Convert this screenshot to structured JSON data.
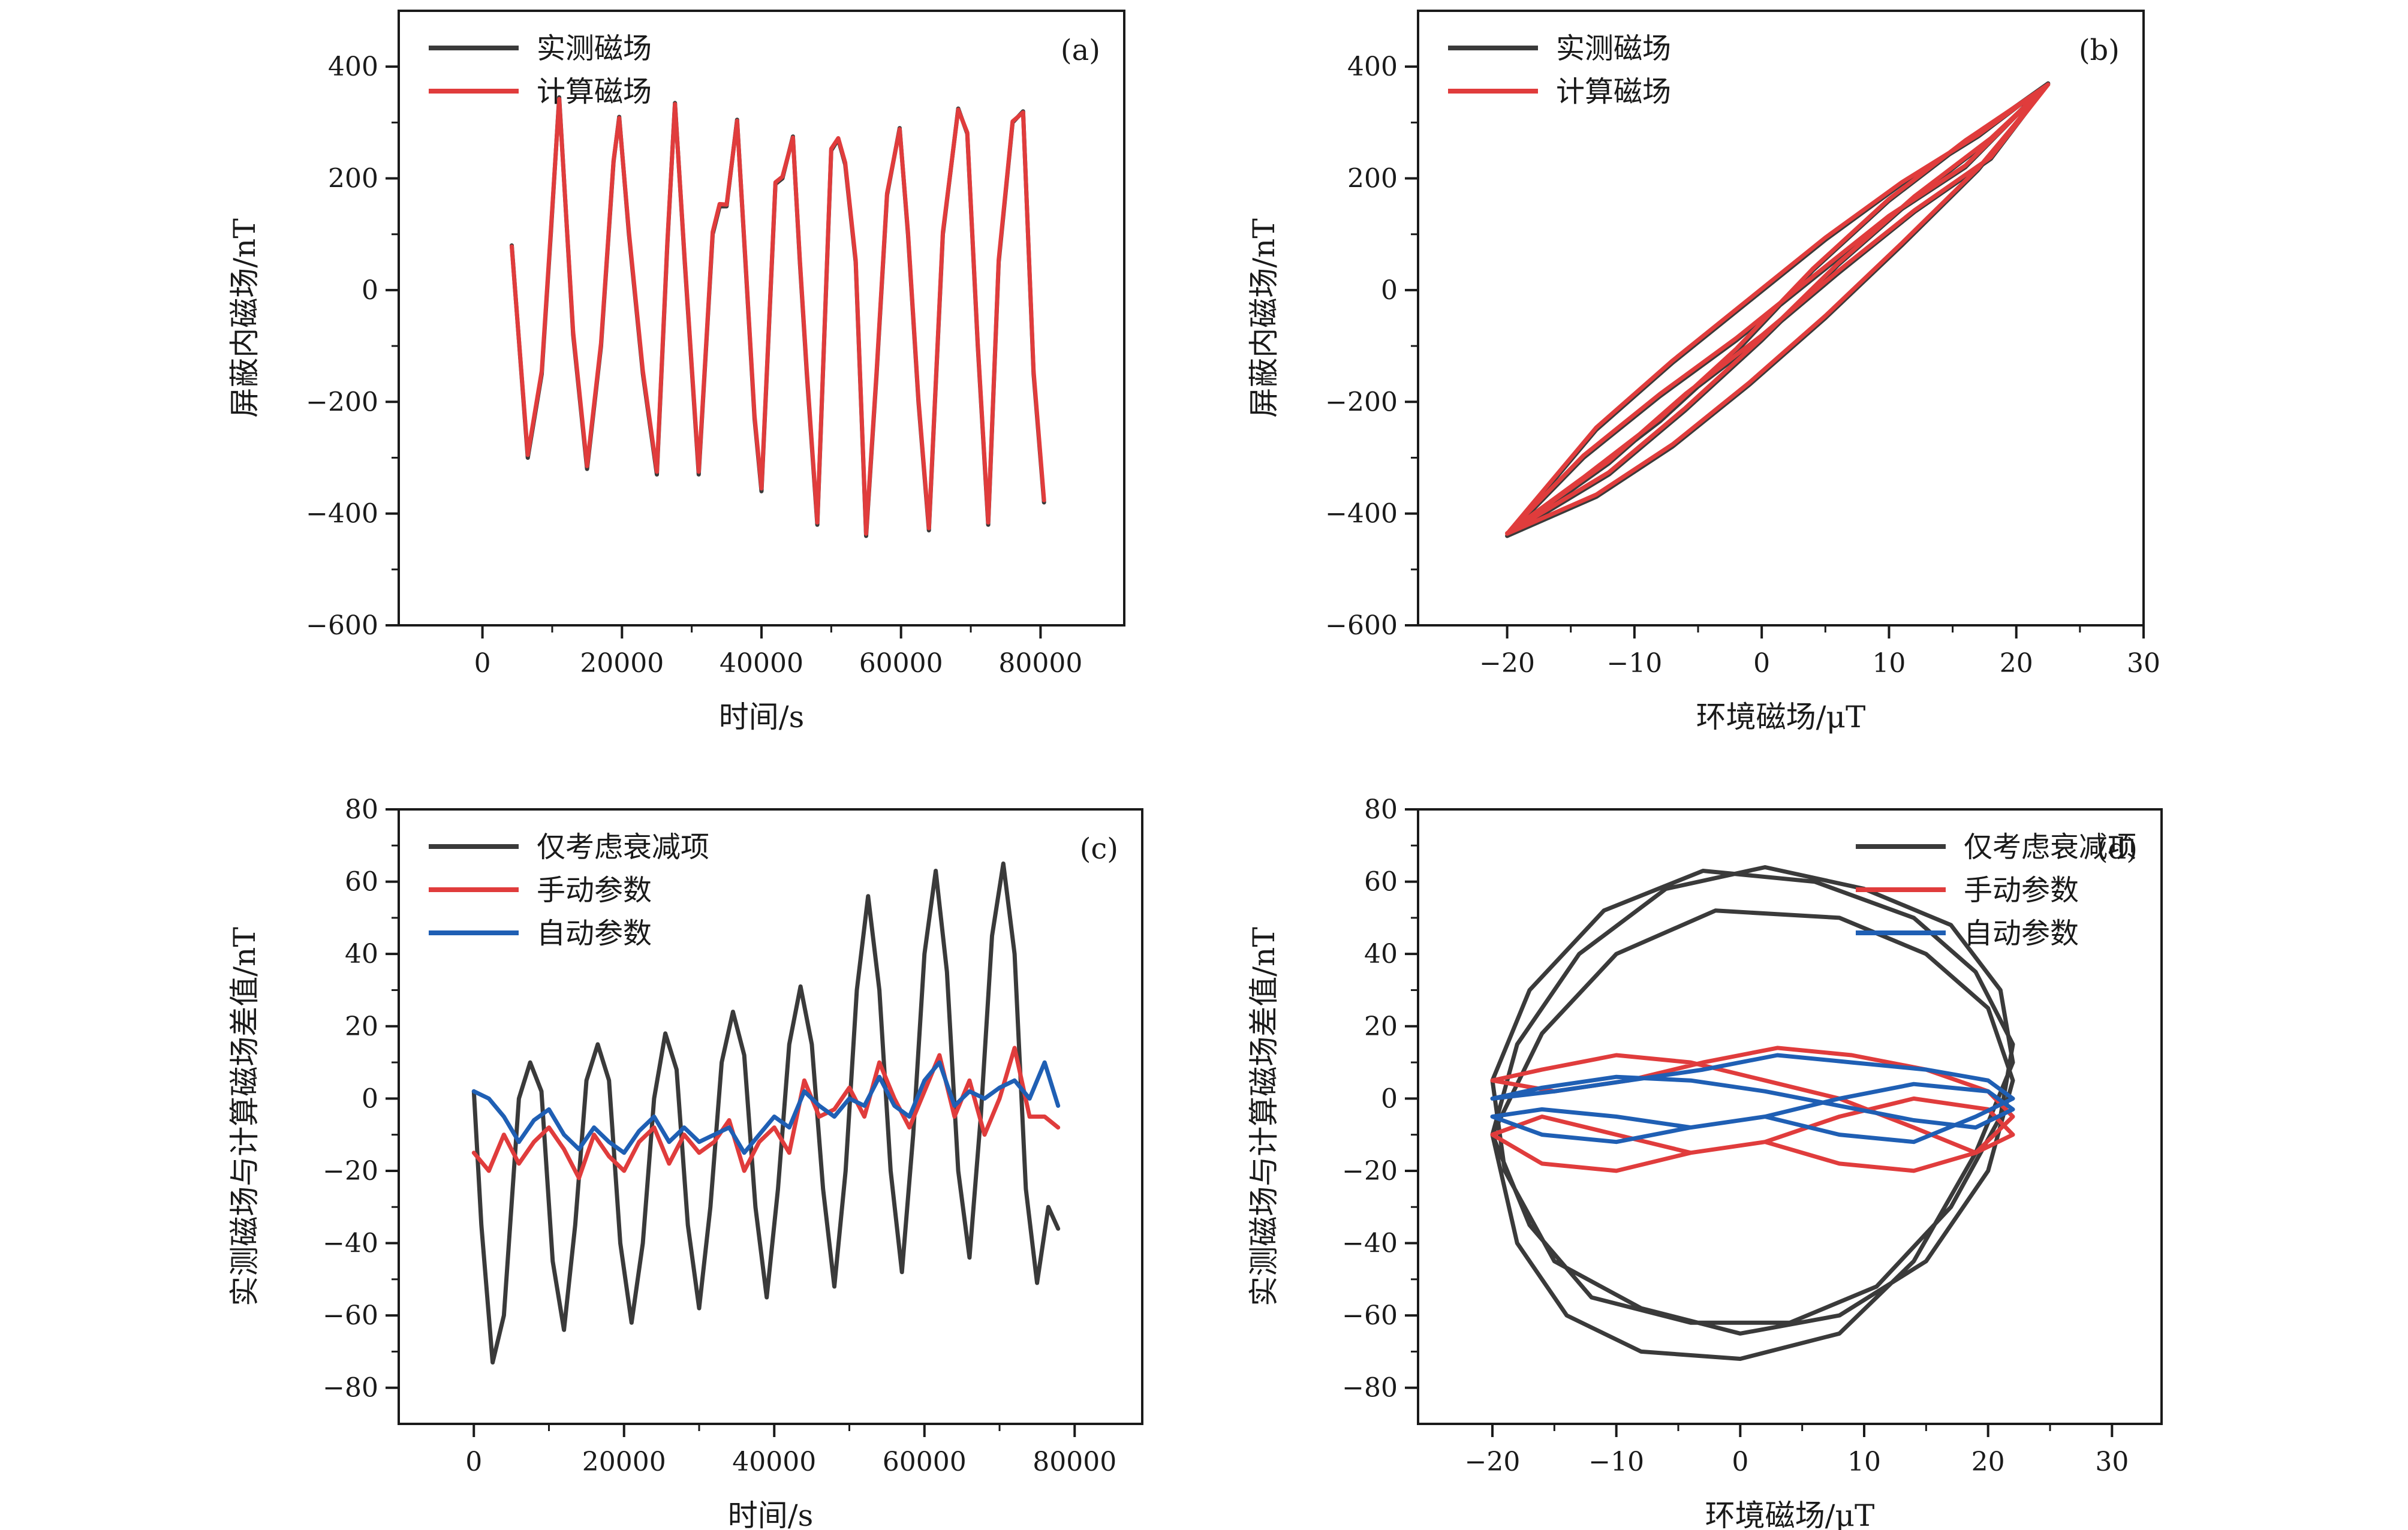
{
  "colors": {
    "black": "#3a3a3a",
    "red": "#e03c3c",
    "blue": "#1f5fb4",
    "axis": "#1a1a1a"
  },
  "chart_data": [
    {
      "panel": "a",
      "type": "line",
      "label": "(a)",
      "xlabel": "时间/s",
      "ylabel": "屏蔽内磁场/nT",
      "xlim": [
        -12000,
        92000
      ],
      "ylim": [
        -600,
        500
      ],
      "xticks": [
        0,
        20000,
        40000,
        60000,
        80000
      ],
      "xtick_labels": [
        "0",
        "20000",
        "40000",
        "60000",
        "80000"
      ],
      "yticks": [
        -600,
        -400,
        -200,
        0,
        200,
        400
      ],
      "ytick_labels": [
        "−600",
        "−400",
        "−200",
        "0",
        "200",
        "400"
      ],
      "legend_position": "top-left",
      "series": [
        {
          "name": "实测磁场",
          "color": "black",
          "x": [
            4200,
            6500,
            8500,
            9800,
            11000,
            13000,
            15000,
            17000,
            18800,
            19600,
            21000,
            23000,
            25000,
            26500,
            27600,
            29000,
            31000,
            33000,
            34000,
            35000,
            36500,
            37700,
            39000,
            40000,
            42000,
            43000,
            44500,
            45500,
            46500,
            48000,
            50000,
            51000,
            52000,
            53500,
            55000,
            56500,
            58000,
            59800,
            61000,
            62500,
            64000,
            66000,
            68200,
            69500,
            71000,
            72500,
            74000,
            76000,
            77500,
            79000,
            80500
          ],
          "y": [
            80,
            -300,
            -150,
            100,
            345,
            -80,
            -320,
            -100,
            230,
            310,
            100,
            -150,
            -330,
            80,
            335,
            50,
            -330,
            100,
            150,
            150,
            305,
            50,
            -230,
            -360,
            190,
            200,
            275,
            50,
            -150,
            -420,
            250,
            270,
            225,
            50,
            -440,
            -150,
            170,
            290,
            100,
            -200,
            -430,
            100,
            325,
            280,
            -100,
            -420,
            50,
            300,
            320,
            -150,
            -380
          ]
        },
        {
          "name": "计算磁场",
          "color": "red",
          "x": [
            4200,
            6500,
            8500,
            9800,
            11000,
            13000,
            15000,
            17000,
            18800,
            19600,
            21000,
            23000,
            25000,
            26500,
            27600,
            29000,
            31000,
            33000,
            34000,
            35000,
            36500,
            37700,
            39000,
            40000,
            42000,
            43000,
            44500,
            45500,
            46500,
            48000,
            50000,
            51000,
            52000,
            53500,
            55000,
            56500,
            58000,
            59800,
            61000,
            62500,
            64000,
            66000,
            68200,
            69500,
            71000,
            72500,
            74000,
            76000,
            77500,
            79000,
            80500
          ],
          "y": [
            78,
            -295,
            -145,
            105,
            342,
            -75,
            -315,
            -95,
            232,
            308,
            104,
            -145,
            -325,
            84,
            333,
            54,
            -325,
            104,
            154,
            153,
            303,
            54,
            -225,
            -355,
            193,
            203,
            273,
            54,
            -145,
            -416,
            253,
            272,
            228,
            54,
            -436,
            -145,
            173,
            288,
            104,
            -196,
            -426,
            104,
            323,
            282,
            -96,
            -416,
            54,
            302,
            318,
            -145,
            -376
          ]
        }
      ]
    },
    {
      "panel": "b",
      "type": "line",
      "label": "(b)",
      "xlabel": "环境磁场/μT",
      "ylabel": "屏蔽内磁场/nT",
      "xlim": [
        -27,
        30
      ],
      "ylim": [
        -600,
        500
      ],
      "xticks": [
        -20,
        -10,
        0,
        10,
        20,
        30
      ],
      "xtick_labels": [
        "−20",
        "−10",
        "0",
        "10",
        "20",
        "30"
      ],
      "yticks": [
        -600,
        -400,
        -200,
        0,
        200,
        400
      ],
      "ytick_labels": [
        "−600",
        "−400",
        "−200",
        "0",
        "200",
        "400"
      ],
      "legend_position": "top-left",
      "series": [
        {
          "name": "实测磁场",
          "color": "black",
          "x": [
            -20,
            -14,
            -8,
            -2,
            4,
            10,
            16,
            22.5,
            16,
            10,
            4,
            -2,
            -8,
            -14,
            -20,
            -13,
            -7,
            -1,
            5,
            11,
            17,
            22.5,
            17,
            11,
            5,
            -1,
            -7,
            -13,
            -20,
            -12,
            -6,
            0,
            6,
            12,
            18,
            22.5,
            18,
            12,
            6,
            0,
            -6,
            -12,
            -20
          ],
          "y": [
            -440,
            -340,
            -235,
            -110,
            35,
            160,
            265,
            370,
            220,
            130,
            20,
            -90,
            -190,
            -300,
            -440,
            -370,
            -280,
            -170,
            -50,
            80,
            215,
            370,
            275,
            190,
            90,
            -20,
            -130,
            -250,
            -440,
            -330,
            -215,
            -90,
            45,
            165,
            270,
            370,
            235,
            140,
            30,
            -85,
            -190,
            -310,
            -440
          ]
        },
        {
          "name": "计算磁场",
          "color": "red",
          "x": [
            -20,
            -14,
            -8,
            -2,
            4,
            10,
            16,
            22.5,
            16,
            10,
            4,
            -2,
            -8,
            -14,
            -20,
            -13,
            -7,
            -1,
            5,
            11,
            17,
            22.5,
            17,
            11,
            5,
            -1,
            -7,
            -13,
            -20,
            -12,
            -6,
            0,
            6,
            12,
            18,
            22.5,
            18,
            12,
            6,
            0,
            -6,
            -12,
            -20
          ],
          "y": [
            -435,
            -335,
            -230,
            -105,
            38,
            163,
            268,
            368,
            223,
            133,
            24,
            -86,
            -186,
            -296,
            -436,
            -366,
            -276,
            -166,
            -46,
            84,
            218,
            368,
            278,
            193,
            94,
            -16,
            -126,
            -246,
            -436,
            -326,
            -211,
            -86,
            48,
            168,
            272,
            368,
            238,
            143,
            34,
            -81,
            -186,
            -306,
            -436
          ]
        }
      ]
    },
    {
      "panel": "c",
      "type": "line",
      "label": "(c)",
      "xlabel": "时间/s",
      "ylabel": "实测磁场与计算磁场差值/nT",
      "xlim": [
        -10000,
        89000
      ],
      "ylim": [
        -90,
        80
      ],
      "xticks": [
        0,
        20000,
        40000,
        60000,
        80000
      ],
      "xtick_labels": [
        "0",
        "20000",
        "40000",
        "60000",
        "80000"
      ],
      "yticks": [
        -80,
        -60,
        -40,
        -20,
        0,
        20,
        40,
        60,
        80
      ],
      "ytick_labels": [
        "−80",
        "−60",
        "−40",
        "−20",
        "0",
        "20",
        "40",
        "60",
        "80"
      ],
      "legend_position": "top-left",
      "series": [
        {
          "name": "仅考虑衰减项",
          "color": "black",
          "x": [
            0,
            1000,
            2500,
            4000,
            6000,
            7500,
            9000,
            10500,
            12000,
            13500,
            15000,
            16500,
            18000,
            19500,
            21000,
            22500,
            24000,
            25500,
            27000,
            28500,
            30000,
            31500,
            33000,
            34500,
            36000,
            37500,
            39000,
            40500,
            42000,
            43500,
            45000,
            46500,
            48000,
            49500,
            51000,
            52500,
            54000,
            55500,
            57000,
            58500,
            60000,
            61500,
            63000,
            64500,
            66000,
            67500,
            69000,
            70500,
            72000,
            73500,
            75000,
            76500,
            77800
          ],
          "y": [
            2,
            -35,
            -73,
            -60,
            0,
            10,
            2,
            -45,
            -64,
            -35,
            5,
            15,
            5,
            -40,
            -62,
            -40,
            0,
            18,
            8,
            -35,
            -58,
            -30,
            10,
            24,
            12,
            -30,
            -55,
            -25,
            15,
            31,
            15,
            -25,
            -52,
            -20,
            30,
            56,
            30,
            -20,
            -48,
            -10,
            40,
            63,
            35,
            -20,
            -44,
            -5,
            45,
            65,
            40,
            -25,
            -51,
            -30,
            -36
          ]
        },
        {
          "name": "手动参数",
          "color": "red",
          "x": [
            0,
            2000,
            4000,
            6000,
            8000,
            10000,
            12000,
            14000,
            16000,
            18000,
            20000,
            22000,
            24000,
            26000,
            28000,
            30000,
            32000,
            34000,
            36000,
            38000,
            40000,
            42000,
            44000,
            46000,
            48000,
            50000,
            52000,
            54000,
            56000,
            58000,
            60000,
            62000,
            64000,
            66000,
            68000,
            70000,
            72000,
            74000,
            76000,
            77800
          ],
          "y": [
            -15,
            -20,
            -10,
            -18,
            -12,
            -8,
            -14,
            -22,
            -10,
            -16,
            -20,
            -12,
            -8,
            -18,
            -10,
            -15,
            -12,
            -6,
            -20,
            -12,
            -8,
            -15,
            5,
            -5,
            -3,
            3,
            -5,
            10,
            0,
            -8,
            2,
            12,
            -5,
            5,
            -10,
            0,
            14,
            -5,
            -5,
            -8
          ]
        },
        {
          "name": "自动参数",
          "color": "blue",
          "x": [
            0,
            2000,
            4000,
            6000,
            8000,
            10000,
            12000,
            14000,
            16000,
            18000,
            20000,
            22000,
            24000,
            26000,
            28000,
            30000,
            32000,
            34000,
            36000,
            38000,
            40000,
            42000,
            44000,
            46000,
            48000,
            50000,
            52000,
            54000,
            56000,
            58000,
            60000,
            62000,
            64000,
            66000,
            68000,
            70000,
            72000,
            74000,
            76000,
            77800
          ],
          "y": [
            2,
            0,
            -5,
            -12,
            -6,
            -3,
            -10,
            -14,
            -8,
            -12,
            -15,
            -9,
            -5,
            -12,
            -8,
            -12,
            -10,
            -8,
            -15,
            -10,
            -5,
            -8,
            2,
            -2,
            -5,
            0,
            -2,
            6,
            -2,
            -5,
            5,
            10,
            -2,
            2,
            0,
            3,
            5,
            0,
            10,
            -2
          ]
        }
      ]
    },
    {
      "panel": "d",
      "type": "line",
      "label": "(d)",
      "xlabel": "环境磁场/μT",
      "ylabel": "实测磁场与计算磁场差值/nT",
      "xlim": [
        -26,
        34
      ],
      "ylim": [
        -90,
        80
      ],
      "xticks": [
        -20,
        -10,
        0,
        10,
        20,
        30
      ],
      "xtick_labels": [
        "−20",
        "−10",
        "0",
        "10",
        "20",
        "30"
      ],
      "yticks": [
        -80,
        -60,
        -40,
        -20,
        0,
        20,
        40,
        60,
        80
      ],
      "ytick_labels": [
        "−80",
        "−60",
        "−40",
        "−20",
        "0",
        "20",
        "40",
        "60",
        "80"
      ],
      "legend_position": "top-right",
      "series": [
        {
          "name": "仅考虑衰减项",
          "color": "black",
          "x": [
            -20,
            -18,
            -14,
            -8,
            0,
            8,
            14,
            19,
            22,
            21,
            17,
            10,
            2,
            -6,
            -13,
            -18,
            -20,
            -17,
            -12,
            -4,
            4,
            11,
            17,
            21,
            22,
            19,
            14,
            6,
            -3,
            -11,
            -17,
            -20,
            -19,
            -15,
            -8,
            0,
            8,
            15,
            20,
            22,
            20,
            15,
            8,
            -2,
            -10,
            -16,
            -20
          ],
          "y": [
            -10,
            -40,
            -60,
            -70,
            -72,
            -65,
            -45,
            -15,
            10,
            30,
            48,
            58,
            64,
            58,
            40,
            15,
            -10,
            -35,
            -55,
            -62,
            -62,
            -52,
            -30,
            -5,
            15,
            35,
            50,
            60,
            63,
            52,
            30,
            5,
            -20,
            -45,
            -58,
            -65,
            -60,
            -45,
            -20,
            5,
            25,
            40,
            50,
            52,
            40,
            18,
            -10
          ]
        },
        {
          "name": "手动参数",
          "color": "red",
          "x": [
            -20,
            -16,
            -10,
            -4,
            2,
            8,
            14,
            19,
            22,
            20,
            15,
            9,
            3,
            -3,
            -9,
            -15,
            -20,
            -16,
            -10,
            -4,
            2,
            8,
            14,
            19,
            22,
            20,
            14,
            8,
            2,
            -4,
            -10,
            -16,
            -20
          ],
          "y": [
            -10,
            -18,
            -20,
            -15,
            -12,
            -18,
            -20,
            -15,
            -5,
            2,
            8,
            12,
            14,
            10,
            5,
            2,
            5,
            8,
            12,
            10,
            5,
            0,
            -8,
            -15,
            -10,
            -3,
            0,
            -5,
            -12,
            -15,
            -10,
            -5,
            -10
          ]
        },
        {
          "name": "自动参数",
          "color": "blue",
          "x": [
            -20,
            -16,
            -10,
            -4,
            2,
            8,
            14,
            19,
            22,
            20,
            15,
            9,
            3,
            -3,
            -9,
            -15,
            -20,
            -16,
            -10,
            -4,
            2,
            8,
            14,
            19,
            22,
            20,
            14,
            8,
            2,
            -4,
            -10,
            -16,
            -20
          ],
          "y": [
            -5,
            -10,
            -12,
            -8,
            -5,
            -10,
            -12,
            -5,
            0,
            5,
            8,
            10,
            12,
            8,
            5,
            2,
            0,
            3,
            6,
            5,
            2,
            -2,
            -6,
            -8,
            -3,
            2,
            4,
            0,
            -5,
            -8,
            -5,
            -3,
            -5
          ]
        }
      ]
    }
  ]
}
